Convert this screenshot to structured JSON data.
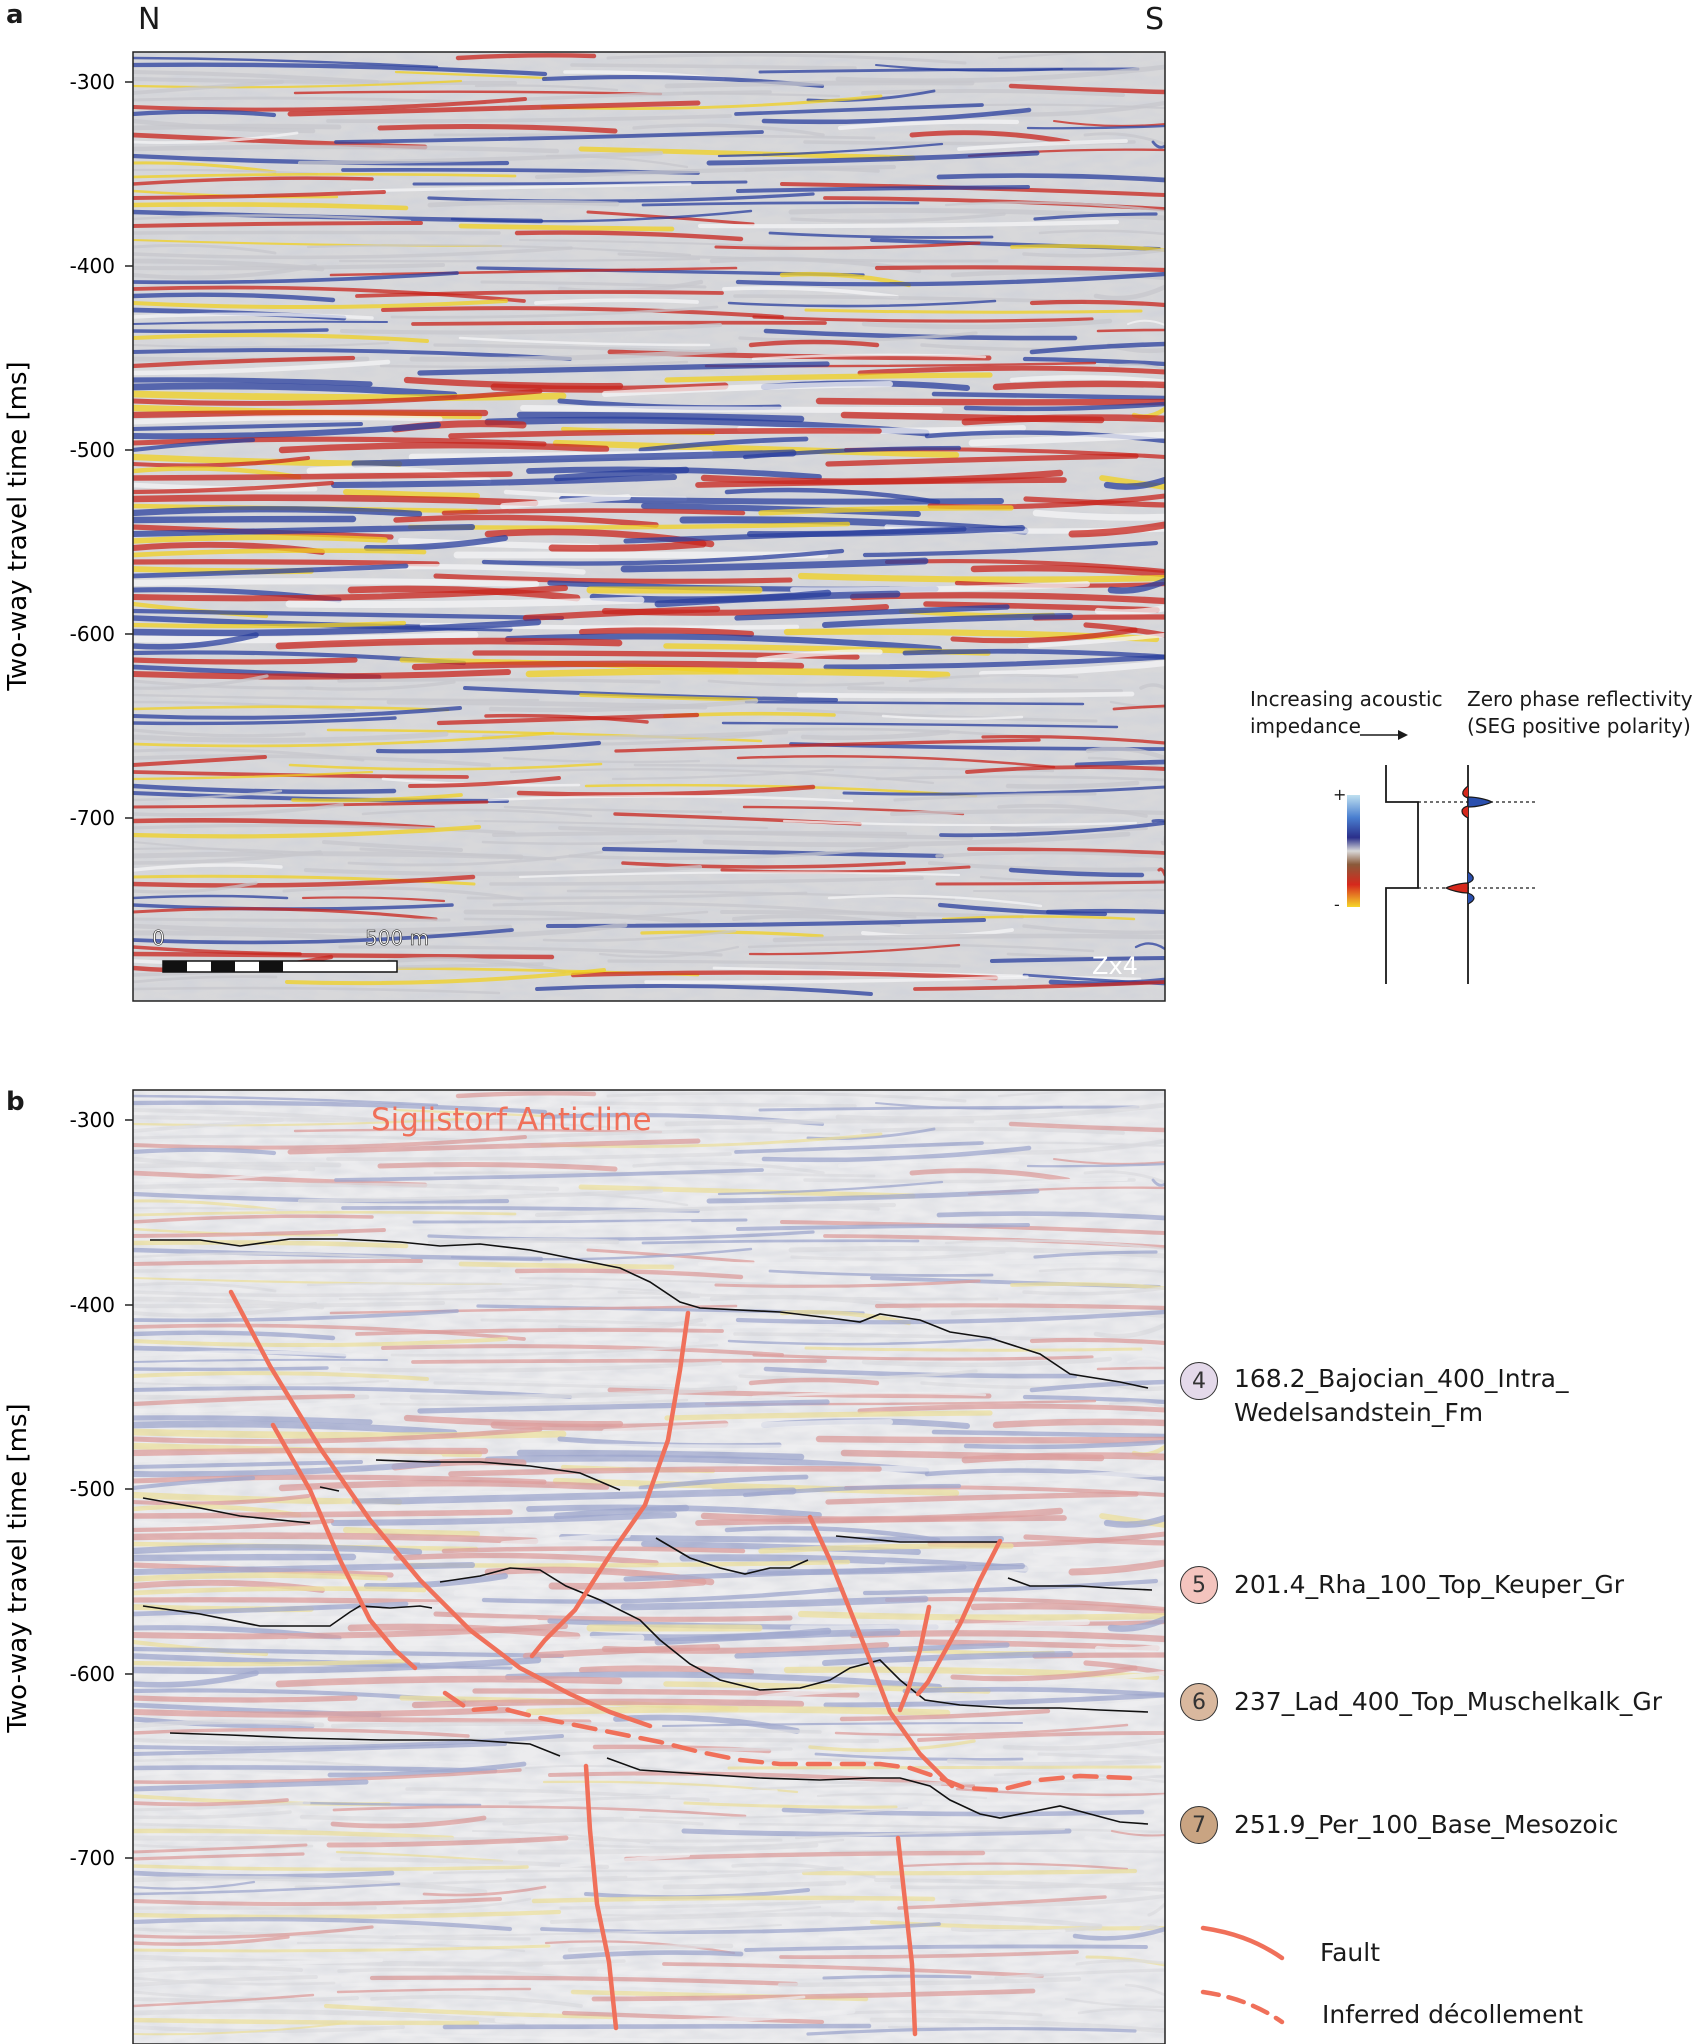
{
  "panel_a": {
    "letter": "a",
    "north_label": "N",
    "south_label": "S",
    "y_axis_label": "Two-way travel time [ms]",
    "y_ticks": [
      "-300",
      "-400",
      "-500",
      "-600",
      "-700"
    ],
    "scale_bar": {
      "start_label": "0",
      "end_label": "500 m"
    },
    "section_tag": "Zx4"
  },
  "panel_b": {
    "letter": "b",
    "y_axis_label": "Two-way travel time [ms]",
    "y_ticks": [
      "-300",
      "-400",
      "-500",
      "-600",
      "-700"
    ],
    "structure_label": "Siglistorf Anticline"
  },
  "polarity_key": {
    "impedance_label_line1": "Increasing acoustic",
    "impedance_label_line2": "impedance",
    "reflectivity_label_line1": "Zero phase reflectivity",
    "reflectivity_label_line2": "(SEG positive polarity)",
    "plus": "+",
    "minus": "-"
  },
  "legend": {
    "horizons": [
      {
        "number": "4",
        "label_line1": "168.2_Bajocian_400_Intra_",
        "label_line2": "Wedelsandstein_Fm",
        "color": "#e4d9ea"
      },
      {
        "number": "5",
        "label_line1": "201.4_Rha_100_Top_Keuper_Gr",
        "label_line2": "",
        "color": "#f4c4be"
      },
      {
        "number": "6",
        "label_line1": "237_Lad_400_Top_Muschelkalk_Gr",
        "label_line2": "",
        "color": "#d9b89e"
      },
      {
        "number": "7",
        "label_line1": "251.9_Per_100_Base_Mesozoic",
        "label_line2": "",
        "color": "#c9a482"
      }
    ],
    "fault_label": "Fault",
    "decollement_label": "Inferred décollement"
  },
  "colors": {
    "fault": "#f0705a",
    "horizon": "#111111",
    "seismic_blue": "#2a3f9e",
    "seismic_red": "#c8241c",
    "seismic_yellow": "#f0d020"
  }
}
